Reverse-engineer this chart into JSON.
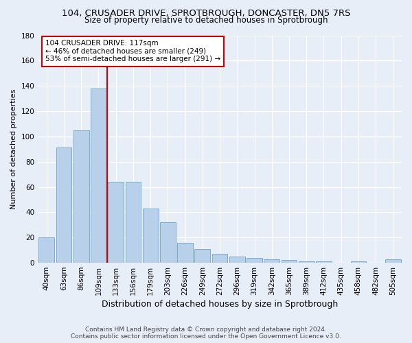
{
  "title_line1": "104, CRUSADER DRIVE, SPROTBROUGH, DONCASTER, DN5 7RS",
  "title_line2": "Size of property relative to detached houses in Sprotbrough",
  "xlabel": "Distribution of detached houses by size in Sprotbrough",
  "ylabel": "Number of detached properties",
  "footer_line1": "Contains HM Land Registry data © Crown copyright and database right 2024.",
  "footer_line2": "Contains public sector information licensed under the Open Government Licence v3.0.",
  "bar_labels": [
    "40sqm",
    "63sqm",
    "86sqm",
    "109sqm",
    "133sqm",
    "156sqm",
    "179sqm",
    "203sqm",
    "226sqm",
    "249sqm",
    "272sqm",
    "296sqm",
    "319sqm",
    "342sqm",
    "365sqm",
    "389sqm",
    "412sqm",
    "435sqm",
    "458sqm",
    "482sqm",
    "505sqm"
  ],
  "bar_heights": [
    20,
    91,
    105,
    138,
    64,
    64,
    43,
    32,
    16,
    11,
    7,
    5,
    4,
    3,
    2,
    1,
    1,
    0,
    1,
    0,
    3
  ],
  "bar_color": "#b8d0ea",
  "bar_edge_color": "#7aadd4",
  "background_color": "#e8eef8",
  "grid_color": "#ffffff",
  "vline_x": 3.5,
  "vline_color": "#cc0000",
  "annotation_text": "104 CRUSADER DRIVE: 117sqm\n← 46% of detached houses are smaller (249)\n53% of semi-detached houses are larger (291) →",
  "annotation_box_color": "#ffffff",
  "annotation_box_edge_color": "#cc0000",
  "ylim": [
    0,
    180
  ],
  "yticks": [
    0,
    20,
    40,
    60,
    80,
    100,
    120,
    140,
    160,
    180
  ],
  "title_fontsize": 9.5,
  "subtitle_fontsize": 8.5,
  "xlabel_fontsize": 9,
  "ylabel_fontsize": 8,
  "tick_fontsize": 7.5,
  "annotation_fontsize": 7.5,
  "footer_fontsize": 6.5
}
